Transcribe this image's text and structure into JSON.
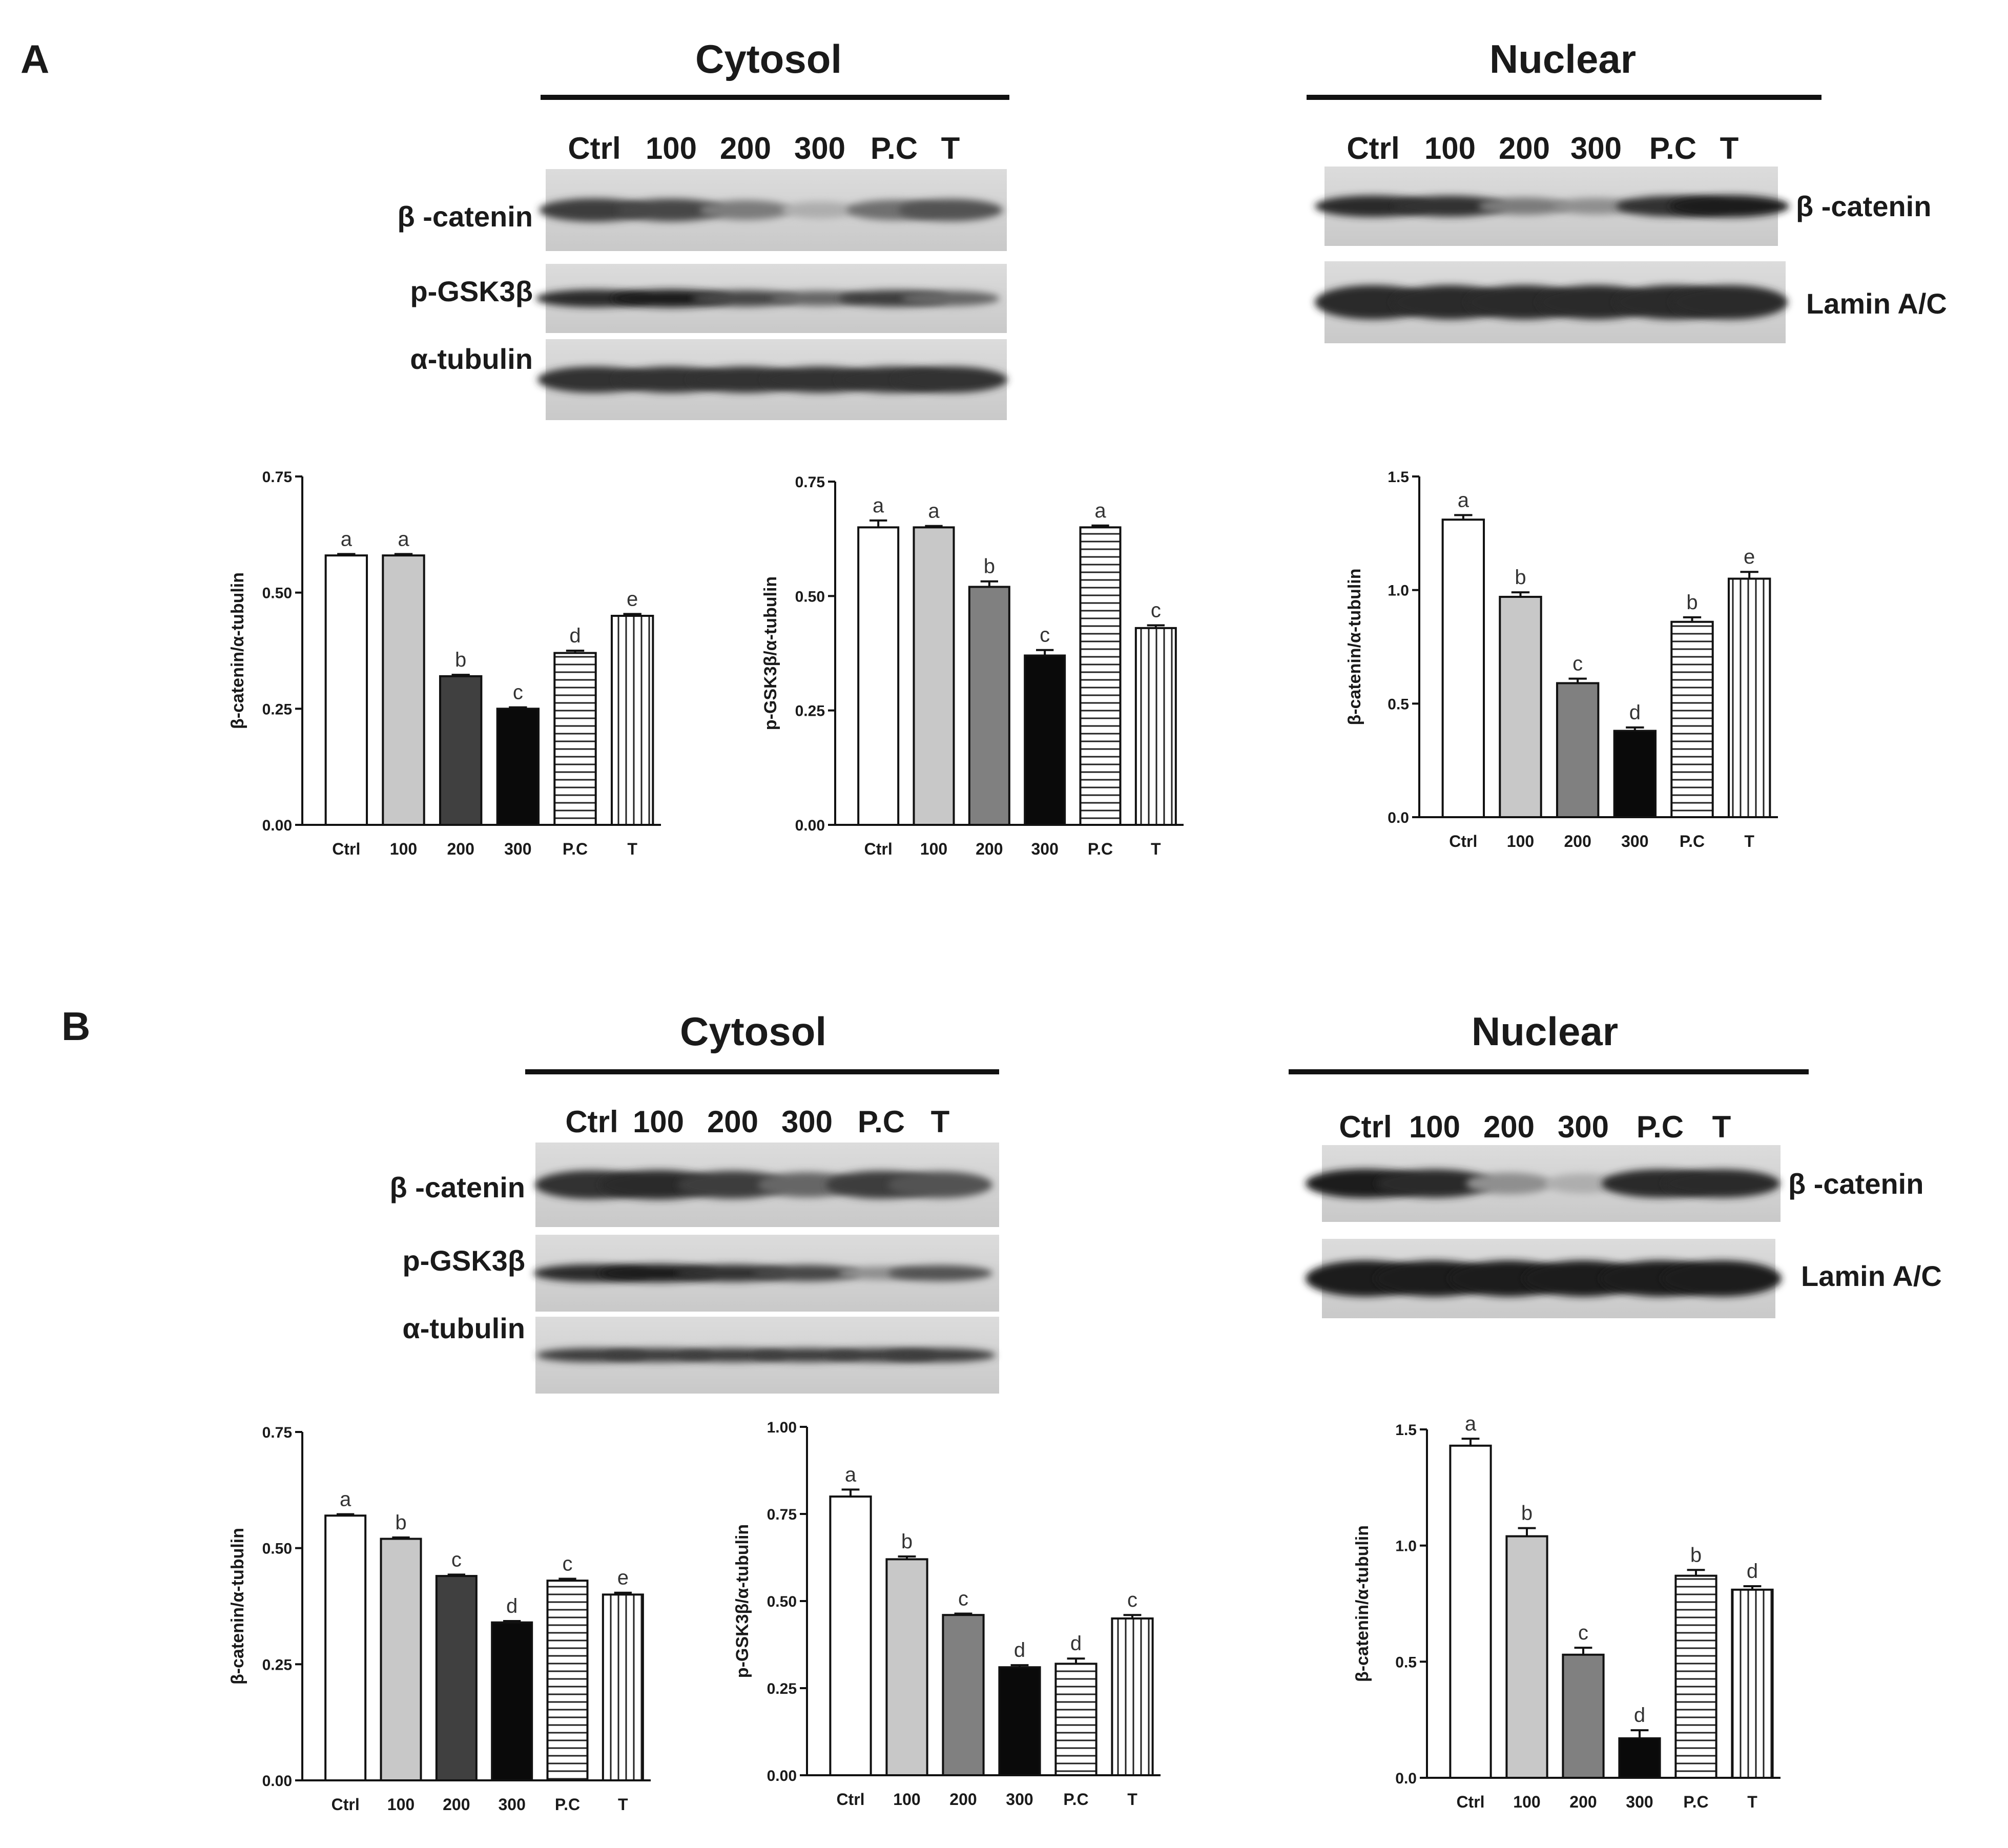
{
  "panels": [
    {
      "letter": "A",
      "sections": [
        {
          "title": "Cytosol",
          "lanes": [
            "Ctrl",
            "100",
            "200",
            "300",
            "P.C",
            "T"
          ],
          "blots": [
            {
              "label": "β -catenin",
              "intensity": [
                0.8,
                0.75,
                0.5,
                0.25,
                0.55,
                0.7
              ]
            },
            {
              "label": "p-GSK3β",
              "intensity": [
                0.9,
                0.95,
                0.75,
                0.6,
                0.8,
                0.6
              ]
            },
            {
              "label": "α-tubulin",
              "intensity": [
                0.85,
                0.85,
                0.85,
                0.85,
                0.85,
                0.85
              ]
            }
          ]
        },
        {
          "title": "Nuclear",
          "lanes": [
            "Ctrl",
            "100",
            "200",
            "300",
            "P.C",
            "T"
          ],
          "blots": [
            {
              "label": "β -catenin",
              "intensity": [
                0.9,
                0.85,
                0.5,
                0.4,
                0.85,
                0.95
              ]
            },
            {
              "label": "Lamin A/C",
              "intensity": [
                0.9,
                0.9,
                0.9,
                0.9,
                0.9,
                0.9
              ]
            }
          ]
        }
      ]
    },
    {
      "letter": "B",
      "sections": [
        {
          "title": "Cytosol",
          "lanes": [
            "Ctrl",
            "100",
            "200",
            "300",
            "P.C",
            "T"
          ],
          "blots": [
            {
              "label": "β -catenin",
              "intensity": [
                0.85,
                0.9,
                0.8,
                0.6,
                0.8,
                0.7
              ]
            },
            {
              "label": "p-GSK3β",
              "intensity": [
                0.9,
                0.95,
                0.85,
                0.75,
                0.4,
                0.7
              ]
            },
            {
              "label": "α-tubulin",
              "intensity": [
                0.8,
                0.8,
                0.8,
                0.8,
                0.8,
                0.8
              ]
            }
          ]
        },
        {
          "title": "Nuclear",
          "lanes": [
            "Ctrl",
            "100",
            "200",
            "300",
            "P.C",
            "T"
          ],
          "blots": [
            {
              "label": "β -catenin",
              "intensity": [
                0.95,
                0.9,
                0.4,
                0.25,
                0.9,
                0.9
              ]
            },
            {
              "label": "Lamin A/C",
              "intensity": [
                0.95,
                0.95,
                0.95,
                0.95,
                0.95,
                0.95
              ]
            }
          ]
        }
      ]
    }
  ],
  "chart_data": [
    {
      "type": "bar",
      "panel": "A",
      "ylabel": "β-catenin/α-tubulin",
      "categories": [
        "Ctrl",
        "100",
        "200",
        "300",
        "P.C",
        "T"
      ],
      "values": [
        0.58,
        0.58,
        0.32,
        0.25,
        0.37,
        0.45
      ],
      "errors": [
        0.003,
        0.003,
        0.003,
        0.003,
        0.005,
        0.004
      ],
      "letters": [
        "a",
        "a",
        "b",
        "c",
        "d",
        "e"
      ],
      "ylim": [
        0,
        0.75
      ],
      "yticks": [
        "0.00",
        "0.25",
        "0.50",
        "0.75"
      ]
    },
    {
      "type": "bar",
      "panel": "A",
      "ylabel": "p-GSK3β/α-tubulin",
      "categories": [
        "Ctrl",
        "100",
        "200",
        "300",
        "P.C",
        "T"
      ],
      "values": [
        0.65,
        0.65,
        0.52,
        0.37,
        0.65,
        0.43
      ],
      "errors": [
        0.015,
        0.003,
        0.012,
        0.012,
        0.004,
        0.006
      ],
      "letters": [
        "a",
        "a",
        "b",
        "c",
        "a",
        "c"
      ],
      "ylim": [
        0,
        0.75
      ],
      "yticks": [
        "0.00",
        "0.25",
        "0.50",
        "0.75"
      ]
    },
    {
      "type": "bar",
      "panel": "A",
      "ylabel": "β-catenin/α-tubulin",
      "categories": [
        "Ctrl",
        "100",
        "200",
        "300",
        "P.C",
        "T"
      ],
      "values": [
        1.31,
        0.97,
        0.59,
        0.38,
        0.86,
        1.05
      ],
      "errors": [
        0.02,
        0.02,
        0.02,
        0.015,
        0.02,
        0.03
      ],
      "letters": [
        "a",
        "b",
        "c",
        "d",
        "b",
        "e"
      ],
      "ylim": [
        0,
        1.5
      ],
      "yticks": [
        "0.0",
        "0.5",
        "1.0",
        "1.5"
      ]
    },
    {
      "type": "bar",
      "panel": "B",
      "ylabel": "β-catenin/α-tubulin",
      "categories": [
        "Ctrl",
        "100",
        "200",
        "300",
        "P.C",
        "T"
      ],
      "values": [
        0.57,
        0.52,
        0.44,
        0.34,
        0.43,
        0.4
      ],
      "errors": [
        0.003,
        0.003,
        0.003,
        0.003,
        0.004,
        0.004
      ],
      "letters": [
        "a",
        "b",
        "c",
        "d",
        "c",
        "e"
      ],
      "ylim": [
        0,
        0.75
      ],
      "yticks": [
        "0.00",
        "0.25",
        "0.50",
        "0.75"
      ]
    },
    {
      "type": "bar",
      "panel": "B",
      "ylabel": "p-GSK3β/α-tubulin",
      "categories": [
        "Ctrl",
        "100",
        "200",
        "300",
        "P.C",
        "T"
      ],
      "values": [
        0.8,
        0.62,
        0.46,
        0.31,
        0.32,
        0.45
      ],
      "errors": [
        0.02,
        0.008,
        0.004,
        0.006,
        0.015,
        0.01
      ],
      "letters": [
        "a",
        "b",
        "c",
        "d",
        "d",
        "c"
      ],
      "ylim": [
        0,
        1.0
      ],
      "yticks": [
        "0.00",
        "0.25",
        "0.50",
        "0.75",
        "1.00"
      ]
    },
    {
      "type": "bar",
      "panel": "B",
      "ylabel": "β-catenin/α-tubulin",
      "categories": [
        "Ctrl",
        "100",
        "200",
        "300",
        "P.C",
        "T"
      ],
      "values": [
        1.43,
        1.04,
        0.53,
        0.17,
        0.87,
        0.81
      ],
      "errors": [
        0.03,
        0.035,
        0.03,
        0.035,
        0.025,
        0.015
      ],
      "letters": [
        "a",
        "b",
        "c",
        "d",
        "b",
        "d"
      ],
      "ylim": [
        0,
        1.5
      ],
      "yticks": [
        "0.0",
        "0.5",
        "1.0",
        "1.5"
      ]
    }
  ]
}
